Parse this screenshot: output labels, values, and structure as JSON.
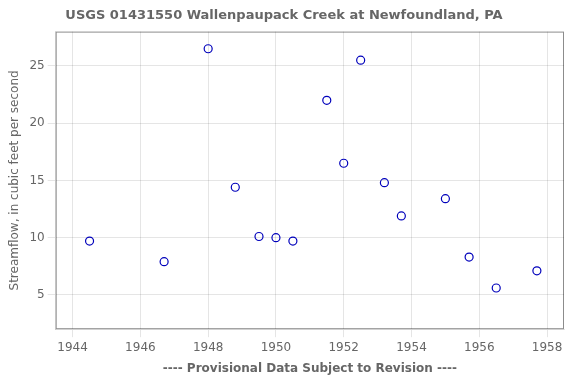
{
  "chart_data": {
    "type": "scatter",
    "title": "USGS 01431550 Wallenpaupack Creek at Newfoundland, PA",
    "xlabel": "---- Provisional Data Subject to Revision ----",
    "ylabel": "Streamflow, in cubic feet per second",
    "x": [
      1944.5,
      1946.7,
      1948.0,
      1948.8,
      1949.5,
      1950.0,
      1950.5,
      1951.5,
      1952.0,
      1952.5,
      1953.2,
      1953.7,
      1955.0,
      1955.7,
      1956.5,
      1957.7
    ],
    "values": [
      9.7,
      7.9,
      26.5,
      14.4,
      10.1,
      10.0,
      9.7,
      22.0,
      16.5,
      25.5,
      14.8,
      11.9,
      13.4,
      8.3,
      5.6,
      7.1
    ],
    "color": "#0000bb",
    "marker": "circle",
    "xlim": [
      1943.5,
      1958.5
    ],
    "xticks": [
      1944,
      1946,
      1948,
      1950,
      1952,
      1954,
      1956,
      1958
    ],
    "ylim": [
      2,
      28
    ],
    "yticks": [
      5,
      10,
      15,
      20,
      25
    ],
    "grid": true
  }
}
